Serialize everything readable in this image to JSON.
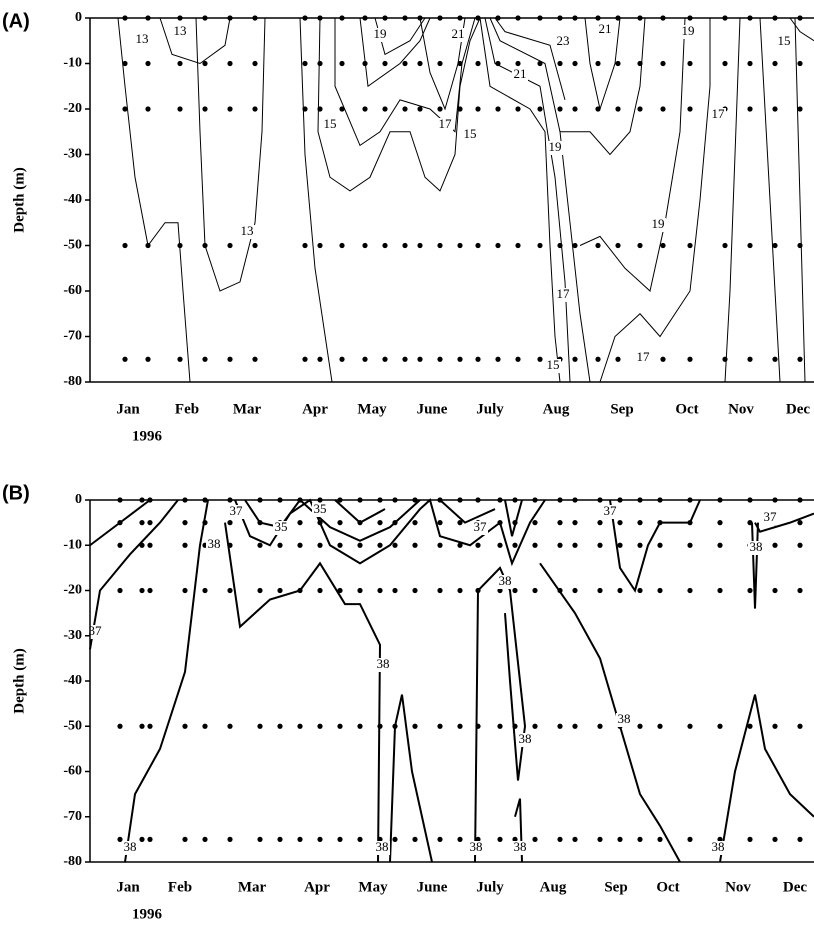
{
  "chart_data": [
    {
      "type": "contour",
      "title": "(A)",
      "ylabel": "Depth (m)",
      "categories": [
        "Jan",
        "Feb",
        "Mar",
        "Apr",
        "May",
        "June",
        "July",
        "Aug",
        "Sep",
        "Oct",
        "Nov",
        "Dec"
      ],
      "year": "1996",
      "ylim": [
        -80,
        0
      ],
      "yticks": [
        -80,
        -70,
        -60,
        -50,
        -40,
        -30,
        -20,
        -10,
        0
      ],
      "sample_depths": [
        0,
        -10,
        -20,
        -50,
        -75
      ],
      "contour_labels": [
        13,
        13,
        13,
        15,
        19,
        21,
        17,
        15,
        21,
        23,
        21,
        19,
        19,
        19,
        17,
        15,
        17,
        15,
        17
      ]
    },
    {
      "type": "contour",
      "title": "(B)",
      "ylabel": "Depth (m)",
      "categories": [
        "Jan",
        "Feb",
        "Mar",
        "Apr",
        "May",
        "June",
        "July",
        "Aug",
        "Sep",
        "Oct",
        "Nov",
        "Dec"
      ],
      "year": "1996",
      "ylim": [
        -80,
        0
      ],
      "yticks": [
        -80,
        -70,
        -60,
        -50,
        -40,
        -30,
        -20,
        -10,
        0
      ],
      "sample_depths": [
        0,
        -5,
        -10,
        -20,
        -50,
        -75
      ],
      "contour_labels": [
        37,
        38,
        37,
        35,
        35,
        38,
        38,
        38,
        38,
        38,
        38,
        38,
        38,
        38,
        37,
        38,
        37,
        37
      ]
    }
  ]
}
